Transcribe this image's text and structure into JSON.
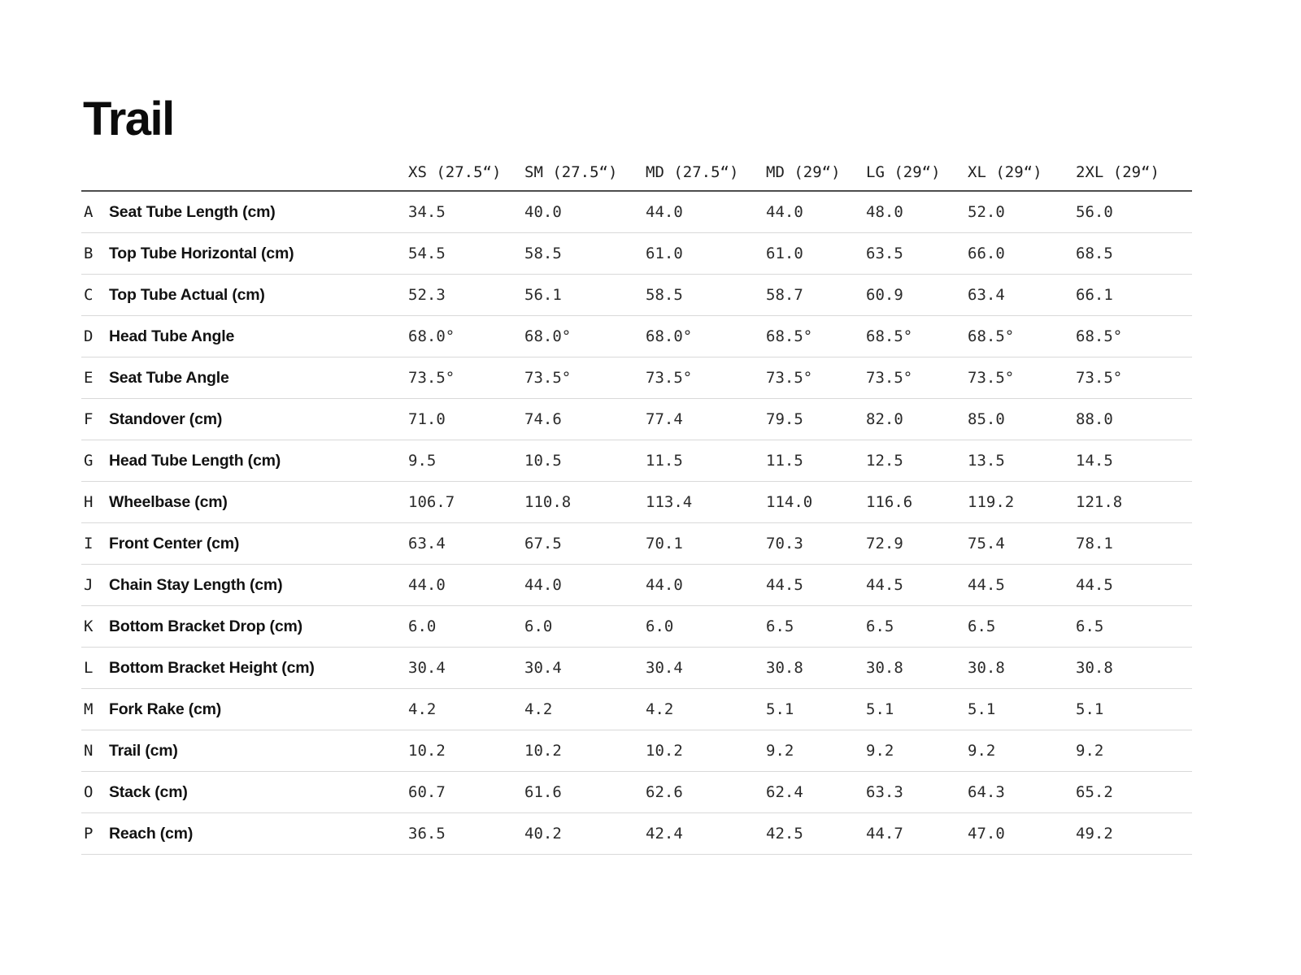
{
  "page": {
    "title": "Trail"
  },
  "colors": {
    "background": "#ffffff",
    "title_text": "#0c0c0c",
    "label_text": "#121212",
    "value_text": "#2b2b2b",
    "header_rule": "#4d4d4d",
    "row_rule": "#d9d9d9"
  },
  "chart_data": {
    "type": "table",
    "title": "Trail",
    "columns": [
      "XS (27.5“)",
      "SM (27.5“)",
      "MD (27.5“)",
      "MD (29“)",
      "LG (29“)",
      "XL (29“)",
      "2XL (29“)"
    ],
    "rows": [
      {
        "key": "A",
        "label": "Seat Tube Length (cm)",
        "values": [
          "34.5",
          "40.0",
          "44.0",
          "44.0",
          "48.0",
          "52.0",
          "56.0"
        ]
      },
      {
        "key": "B",
        "label": "Top Tube Horizontal (cm)",
        "values": [
          "54.5",
          "58.5",
          "61.0",
          "61.0",
          "63.5",
          "66.0",
          "68.5"
        ]
      },
      {
        "key": "C",
        "label": "Top Tube Actual (cm)",
        "values": [
          "52.3",
          "56.1",
          "58.5",
          "58.7",
          "60.9",
          "63.4",
          "66.1"
        ]
      },
      {
        "key": "D",
        "label": "Head Tube Angle",
        "values": [
          "68.0°",
          "68.0°",
          "68.0°",
          "68.5°",
          "68.5°",
          "68.5°",
          "68.5°"
        ]
      },
      {
        "key": "E",
        "label": "Seat Tube Angle",
        "values": [
          "73.5°",
          "73.5°",
          "73.5°",
          "73.5°",
          "73.5°",
          "73.5°",
          "73.5°"
        ]
      },
      {
        "key": "F",
        "label": "Standover (cm)",
        "values": [
          "71.0",
          "74.6",
          "77.4",
          "79.5",
          "82.0",
          "85.0",
          "88.0"
        ]
      },
      {
        "key": "G",
        "label": "Head Tube Length (cm)",
        "values": [
          "9.5",
          "10.5",
          "11.5",
          "11.5",
          "12.5",
          "13.5",
          "14.5"
        ]
      },
      {
        "key": "H",
        "label": "Wheelbase (cm)",
        "values": [
          "106.7",
          "110.8",
          "113.4",
          "114.0",
          "116.6",
          "119.2",
          "121.8"
        ]
      },
      {
        "key": "I",
        "label": "Front Center (cm)",
        "values": [
          "63.4",
          "67.5",
          "70.1",
          "70.3",
          "72.9",
          "75.4",
          "78.1"
        ]
      },
      {
        "key": "J",
        "label": "Chain Stay Length (cm)",
        "values": [
          "44.0",
          "44.0",
          "44.0",
          "44.5",
          "44.5",
          "44.5",
          "44.5"
        ]
      },
      {
        "key": "K",
        "label": "Bottom Bracket Drop (cm)",
        "values": [
          "6.0",
          "6.0",
          "6.0",
          "6.5",
          "6.5",
          "6.5",
          "6.5"
        ]
      },
      {
        "key": "L",
        "label": "Bottom Bracket Height (cm)",
        "values": [
          "30.4",
          "30.4",
          "30.4",
          "30.8",
          "30.8",
          "30.8",
          "30.8"
        ]
      },
      {
        "key": "M",
        "label": "Fork Rake (cm)",
        "values": [
          "4.2",
          "4.2",
          "4.2",
          "5.1",
          "5.1",
          "5.1",
          "5.1"
        ]
      },
      {
        "key": "N",
        "label": "Trail (cm)",
        "values": [
          "10.2",
          "10.2",
          "10.2",
          "9.2",
          "9.2",
          "9.2",
          "9.2"
        ]
      },
      {
        "key": "O",
        "label": "Stack (cm)",
        "values": [
          "60.7",
          "61.6",
          "62.6",
          "62.4",
          "63.3",
          "64.3",
          "65.2"
        ]
      },
      {
        "key": "P",
        "label": "Reach (cm)",
        "values": [
          "36.5",
          "40.2",
          "42.4",
          "42.5",
          "44.7",
          "47.0",
          "49.2"
        ]
      }
    ]
  }
}
